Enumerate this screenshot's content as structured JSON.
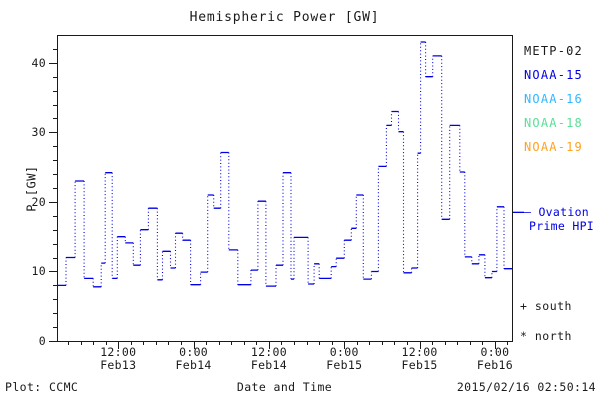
{
  "title": "Hemispheric Power [GW]",
  "colors": {
    "background": "#ffffff",
    "axis": "#1a1a1a",
    "text": "#1a1a1a",
    "hpi_line": "#0000e6"
  },
  "legend": {
    "satellites": [
      {
        "label": "METP-02",
        "color": "#1a1a1a"
      },
      {
        "label": "NOAA-15",
        "color": "#0000e6"
      },
      {
        "label": "NOAA-16",
        "color": "#2eb8ff"
      },
      {
        "label": "NOAA-18",
        "color": "#57e096"
      },
      {
        "label": "NOAA-19",
        "color": "#ffa21f"
      }
    ]
  },
  "annotations": {
    "ovation_line1": "— Ovation",
    "ovation_line2": "Prime HPI",
    "ovation_color": "#0000e6",
    "south": "+ south",
    "north": "* north"
  },
  "footer": {
    "left": "Plot: CCMC",
    "timestamp": "2015/02/16 02:50:14"
  },
  "chart_data": {
    "type": "line",
    "subtype": "steps-post",
    "title": "Hemispheric Power [GW]",
    "xlabel": "Date and Time",
    "ylabel": "P [GW]",
    "ylim": [
      0,
      44
    ],
    "yticks": [
      0,
      10,
      20,
      30,
      40
    ],
    "y_minor_step": 2,
    "x_unit": "hours since 2015-02-13 00:00 UTC",
    "x_start_hours": 2.24,
    "x_end_hours": 74.72,
    "x_minor_step_hours": 2,
    "xticks": [
      {
        "hours": 12,
        "time": "12:00",
        "date": "Feb13"
      },
      {
        "hours": 24,
        "time": "0:00",
        "date": "Feb14"
      },
      {
        "hours": 36,
        "time": "12:00",
        "date": "Feb14"
      },
      {
        "hours": 48,
        "time": "0:00",
        "date": "Feb15"
      },
      {
        "hours": 60,
        "time": "12:00",
        "date": "Feb15"
      },
      {
        "hours": 72,
        "time": "0:00",
        "date": "Feb16"
      }
    ],
    "legend_position": "right-outside",
    "grid": false,
    "series": [
      {
        "name": "Ovation Prime HPI",
        "color": "#0000e6",
        "plateau_style": "solid",
        "connector_style": "dotted",
        "steps": [
          [
            2.24,
            8.0
          ],
          [
            3.68,
            12.0
          ],
          [
            5.12,
            23.0
          ],
          [
            6.56,
            9.0
          ],
          [
            8.0,
            7.8
          ],
          [
            9.28,
            11.2
          ],
          [
            9.92,
            24.2
          ],
          [
            11.04,
            9.0
          ],
          [
            11.84,
            15.0
          ],
          [
            13.12,
            14.1
          ],
          [
            14.4,
            10.9
          ],
          [
            15.52,
            16.0
          ],
          [
            16.8,
            19.1
          ],
          [
            18.24,
            8.8
          ],
          [
            19.04,
            12.9
          ],
          [
            20.32,
            10.5
          ],
          [
            21.12,
            15.5
          ],
          [
            22.24,
            14.5
          ],
          [
            23.52,
            8.1
          ],
          [
            25.12,
            9.9
          ],
          [
            26.24,
            21.0
          ],
          [
            27.2,
            19.1
          ],
          [
            28.32,
            27.1
          ],
          [
            29.6,
            13.1
          ],
          [
            31.04,
            8.1
          ],
          [
            33.12,
            10.2
          ],
          [
            34.24,
            20.1
          ],
          [
            35.52,
            7.9
          ],
          [
            37.12,
            10.9
          ],
          [
            38.24,
            24.2
          ],
          [
            39.52,
            8.9
          ],
          [
            40.0,
            14.9
          ],
          [
            42.24,
            8.2
          ],
          [
            43.2,
            11.1
          ],
          [
            44.0,
            9.0
          ],
          [
            45.92,
            10.7
          ],
          [
            46.72,
            11.9
          ],
          [
            48.0,
            14.5
          ],
          [
            49.12,
            16.2
          ],
          [
            49.92,
            21.0
          ],
          [
            51.04,
            8.9
          ],
          [
            52.32,
            10.0
          ],
          [
            53.44,
            25.1
          ],
          [
            54.72,
            31.0
          ],
          [
            55.52,
            33.0
          ],
          [
            56.64,
            30.1
          ],
          [
            57.44,
            9.8
          ],
          [
            58.72,
            10.5
          ],
          [
            59.68,
            27.0
          ],
          [
            60.16,
            43.0
          ],
          [
            60.96,
            38.0
          ],
          [
            62.08,
            41.0
          ],
          [
            63.52,
            17.5
          ],
          [
            64.8,
            31.0
          ],
          [
            66.4,
            24.3
          ],
          [
            67.2,
            12.1
          ],
          [
            68.32,
            11.1
          ],
          [
            69.44,
            12.4
          ],
          [
            70.4,
            9.1
          ],
          [
            71.52,
            10.0
          ],
          [
            72.32,
            19.3
          ],
          [
            73.44,
            10.4
          ]
        ],
        "t_end": 74.72,
        "pointer_dash_p": 18.5
      }
    ]
  }
}
